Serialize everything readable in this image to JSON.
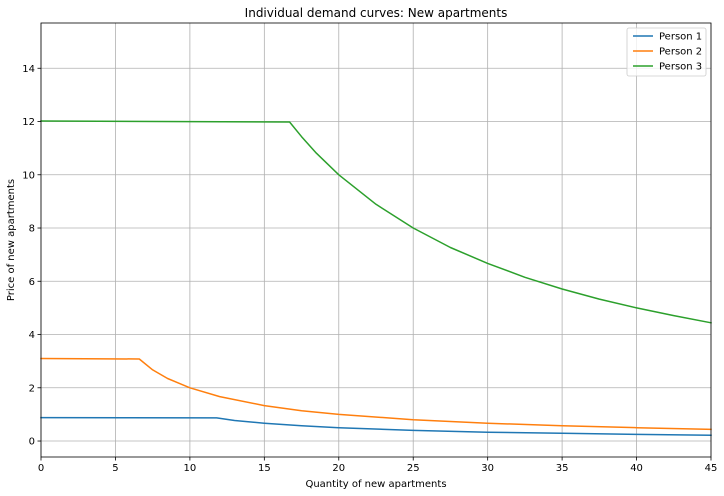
{
  "chart_data": {
    "type": "line",
    "title": "Individual demand curves: New apartments",
    "xlabel": "Quantity of new apartments",
    "ylabel": "Price of new apartments",
    "xlim": [
      0,
      45
    ],
    "ylim": [
      -0.6,
      15.7
    ],
    "xticks": [
      0,
      5,
      10,
      15,
      20,
      25,
      30,
      35,
      40,
      45
    ],
    "yticks": [
      0,
      2,
      4,
      6,
      8,
      10,
      12,
      14
    ],
    "grid": true,
    "legend_position": "top-right",
    "series": [
      {
        "name": "Person 1",
        "color": "#1f77b4",
        "points": [
          [
            0,
            0.88
          ],
          [
            11.8,
            0.87
          ],
          [
            13,
            0.77
          ],
          [
            15,
            0.67
          ],
          [
            17.5,
            0.57
          ],
          [
            20,
            0.5
          ],
          [
            25,
            0.4
          ],
          [
            30,
            0.33
          ],
          [
            35,
            0.29
          ],
          [
            40,
            0.25
          ],
          [
            45,
            0.22
          ]
        ]
      },
      {
        "name": "Person 2",
        "color": "#ff7f0e",
        "points": [
          [
            0,
            3.1
          ],
          [
            6.6,
            3.08
          ],
          [
            7.5,
            2.67
          ],
          [
            8.5,
            2.35
          ],
          [
            10,
            2.0
          ],
          [
            12,
            1.67
          ],
          [
            15,
            1.33
          ],
          [
            17.5,
            1.14
          ],
          [
            20,
            1.0
          ],
          [
            25,
            0.8
          ],
          [
            30,
            0.67
          ],
          [
            35,
            0.57
          ],
          [
            40,
            0.5
          ],
          [
            45,
            0.44
          ]
        ]
      },
      {
        "name": "Person 3",
        "color": "#2ca02c",
        "points": [
          [
            0,
            12.02
          ],
          [
            16.7,
            11.98
          ],
          [
            17.5,
            11.43
          ],
          [
            18.5,
            10.81
          ],
          [
            20,
            10.0
          ],
          [
            22.5,
            8.89
          ],
          [
            25,
            8.0
          ],
          [
            27.5,
            7.27
          ],
          [
            30,
            6.67
          ],
          [
            32.5,
            6.15
          ],
          [
            35,
            5.71
          ],
          [
            37.5,
            5.33
          ],
          [
            40,
            5.0
          ],
          [
            42.5,
            4.71
          ],
          [
            45,
            4.44
          ]
        ]
      }
    ]
  }
}
